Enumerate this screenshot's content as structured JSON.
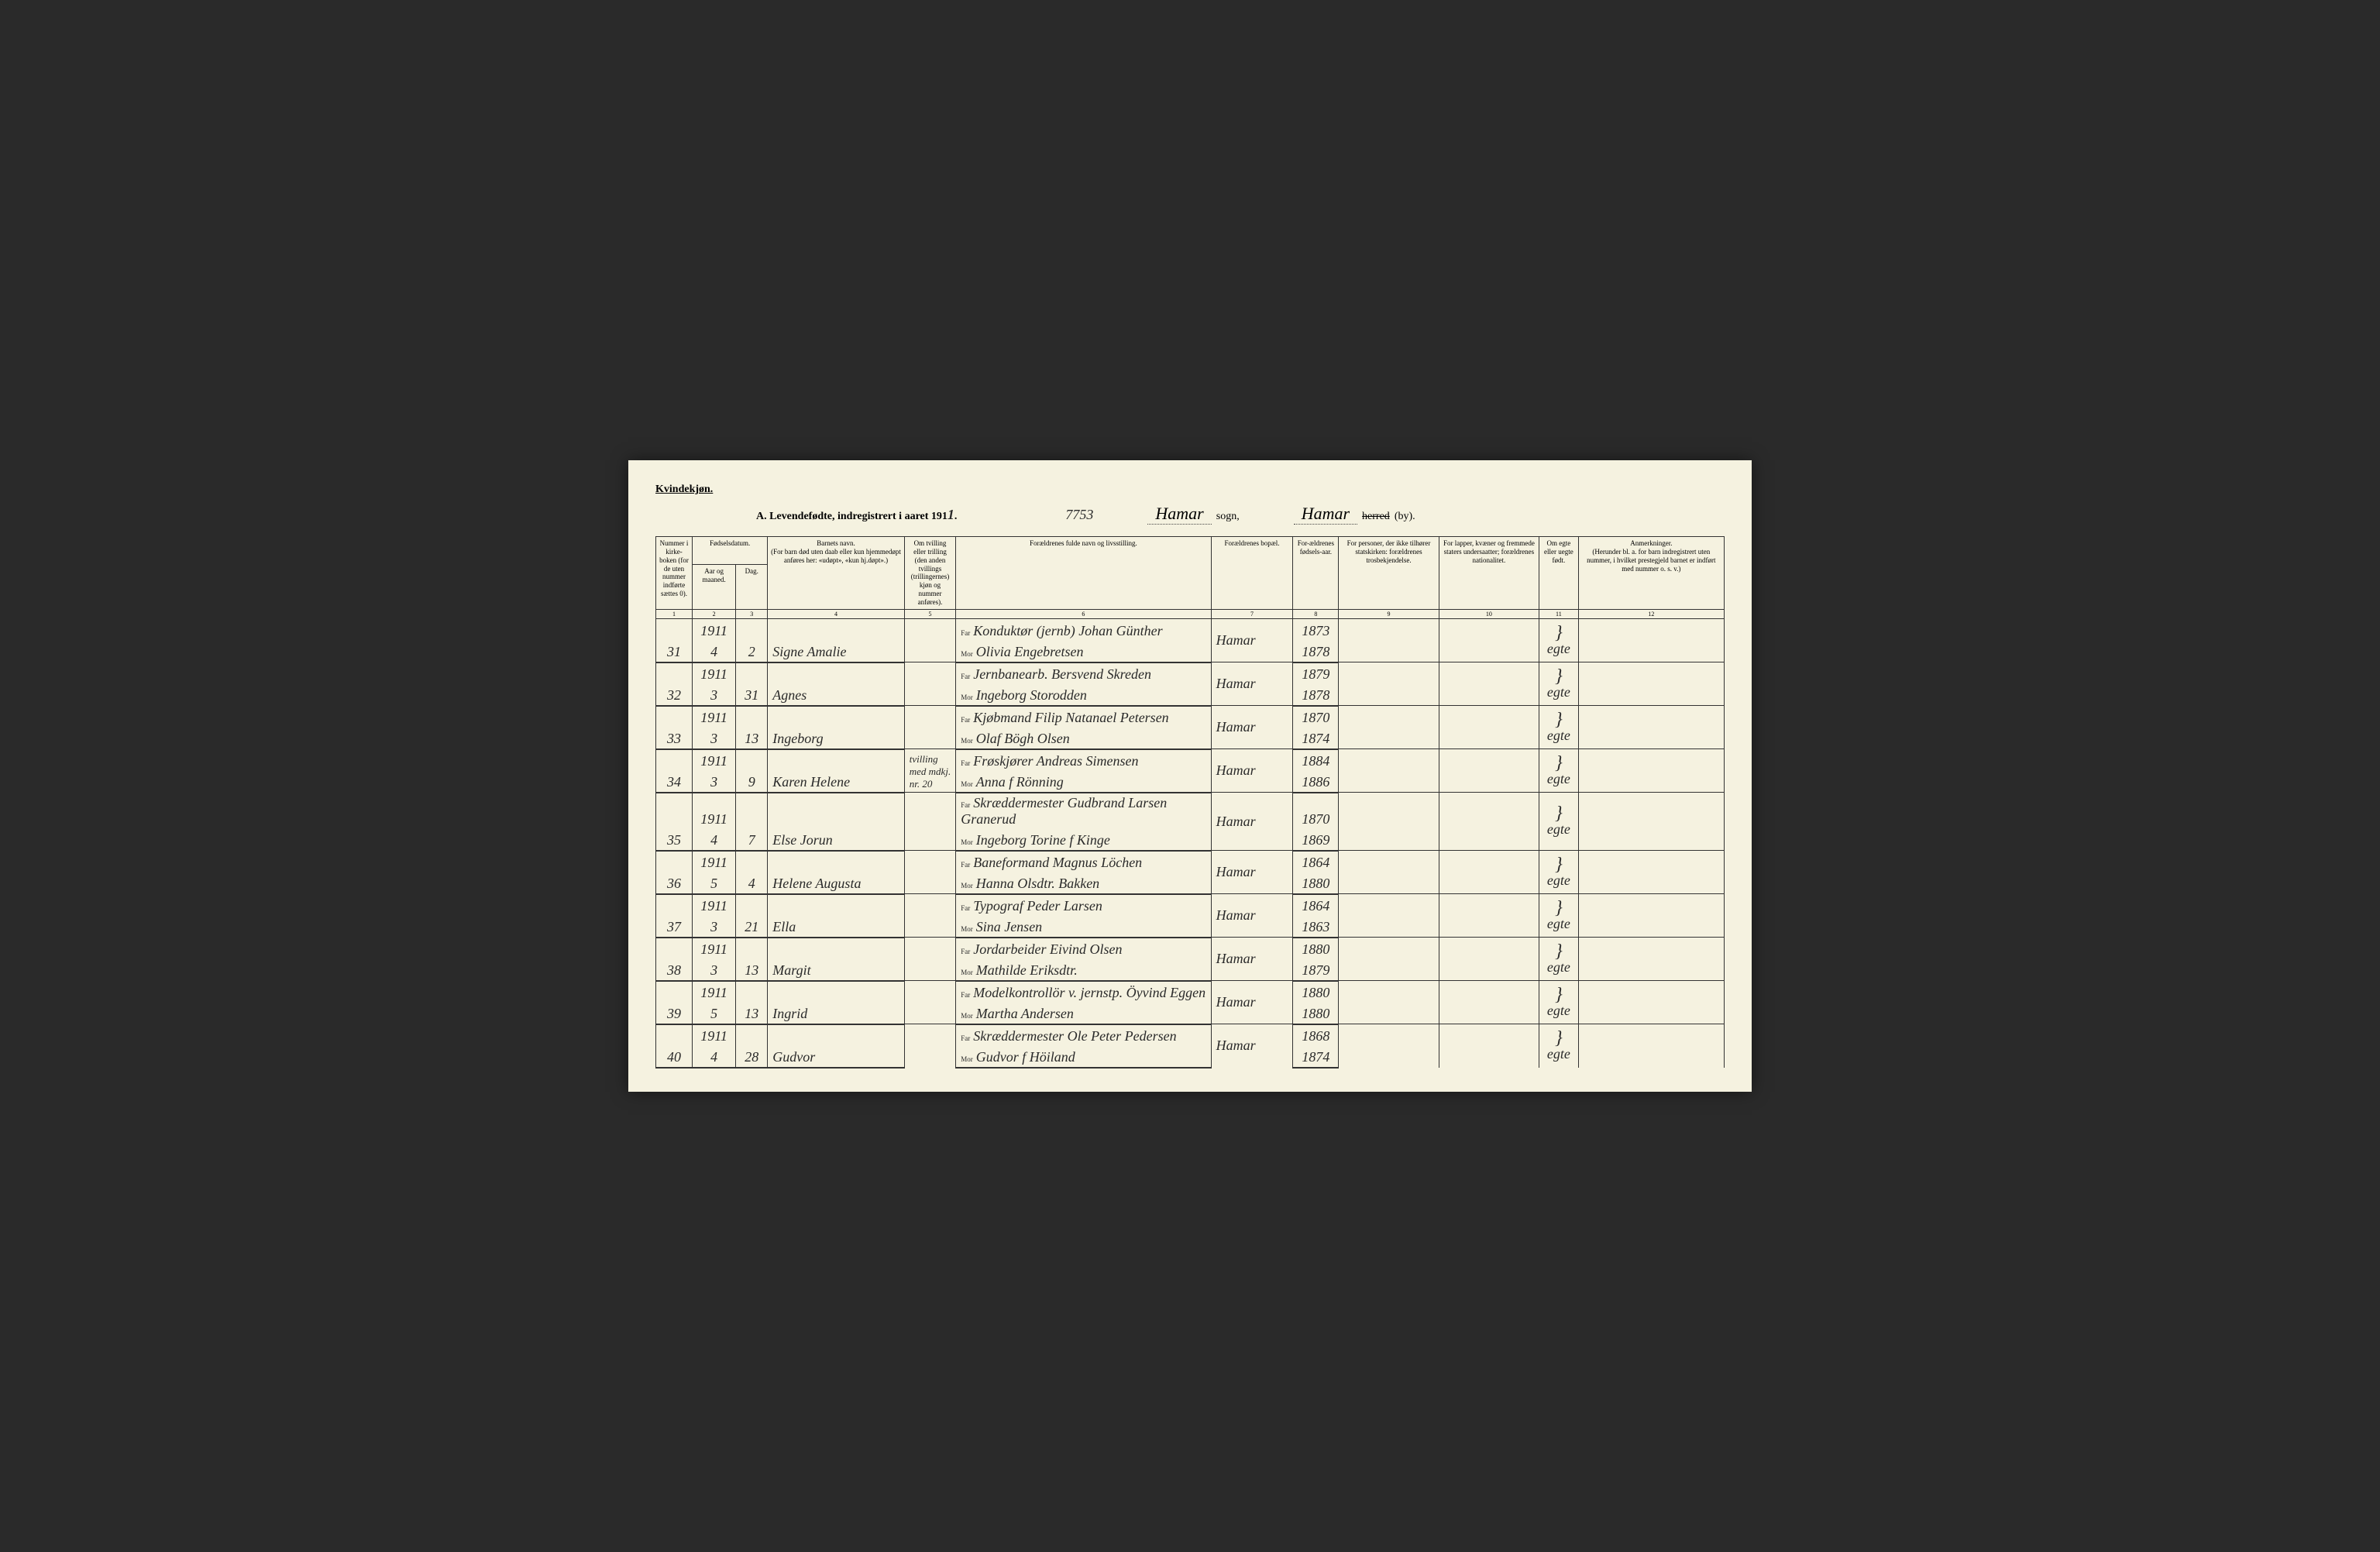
{
  "header": {
    "gender": "Kvindekjøn.",
    "title": "A.  Levendefødte, indregistrert i aaret 191",
    "year_suffix": "1",
    "handwritten_number": "7753",
    "sogn_value": "Hamar",
    "sogn_label": "sogn,",
    "herred_value": "Hamar",
    "herred_strike": "herred",
    "herred_label": "(by)."
  },
  "columns": {
    "c1": "Nummer i kirke-boken (for de uten nummer indførte sættes 0).",
    "c2_top": "Fødselsdatum.",
    "c2a": "Aar og maaned.",
    "c2b": "Dag.",
    "c4_top": "Barnets navn.",
    "c4_sub": "(For barn død uten daab eller kun hjemmedøpt anføres her: «udøpt», «kun hj.døpt».)",
    "c5": "Om tvilling eller trilling (den anden tvillings (trillingernes) kjøn og nummer anføres).",
    "c6": "Forældrenes fulde navn og livsstilling.",
    "c7": "Forældrenes bopæl.",
    "c8": "For-ældrenes fødsels-aar.",
    "c9": "For personer, der ikke tilhører statskirken: forældrenes trosbekjendelse.",
    "c10": "For lapper, kvæner og fremmede staters undersaatter; forældrenes nationalitet.",
    "c11": "Om egte eller uegte født.",
    "c12_top": "Anmerkninger.",
    "c12_sub": "(Herunder bl. a. for barn indregistrert uten nummer, i hvilket prestegjeld barnet er indført med nummer o. s. v.)"
  },
  "colnums": [
    "1",
    "2",
    "3",
    "4",
    "5",
    "6",
    "7",
    "8",
    "9",
    "10",
    "11",
    "12"
  ],
  "far_label": "Far",
  "mor_label": "Mor",
  "rows": [
    {
      "num": "31",
      "year": "1911",
      "month": "4",
      "day": "2",
      "name": "Signe Amalie",
      "twin": "",
      "far": "Konduktør (jernb) Johan Günther",
      "mor": "Olivia Engebretsen",
      "bopael": "Hamar",
      "far_aar": "1873",
      "mor_aar": "1878",
      "egte": "egte"
    },
    {
      "num": "32",
      "year": "1911",
      "month": "3",
      "day": "31",
      "name": "Agnes",
      "twin": "",
      "far": "Jernbanearb. Bersvend Skreden",
      "mor": "Ingeborg Storodden",
      "bopael": "Hamar",
      "far_aar": "1879",
      "mor_aar": "1878",
      "egte": "egte"
    },
    {
      "num": "33",
      "year": "1911",
      "month": "3",
      "day": "13",
      "name": "Ingeborg",
      "twin": "",
      "far": "Kjøbmand Filip Natanael Petersen",
      "mor": "Olaf Bögh Olsen",
      "bopael": "Hamar",
      "far_aar": "1870",
      "mor_aar": "1874",
      "egte": "egte"
    },
    {
      "num": "34",
      "year": "1911",
      "month": "3",
      "day": "9",
      "name": "Karen Helene",
      "twin": "tvilling med mdkj. nr. 20",
      "far": "Frøskjører Andreas Simensen",
      "mor": "Anna f Rönning",
      "bopael": "Hamar",
      "far_aar": "1884",
      "mor_aar": "1886",
      "egte": "egte"
    },
    {
      "num": "35",
      "year": "1911",
      "month": "4",
      "day": "7",
      "name": "Else Jorun",
      "twin": "",
      "far": "Skræddermester Gudbrand Larsen Granerud",
      "mor": "Ingeborg Torine f Kinge",
      "bopael": "Hamar",
      "far_aar": "1870",
      "mor_aar": "1869",
      "egte": "egte"
    },
    {
      "num": "36",
      "year": "1911",
      "month": "5",
      "day": "4",
      "name": "Helene Augusta",
      "twin": "",
      "far": "Baneformand Magnus Löchen",
      "mor": "Hanna Olsdtr. Bakken",
      "bopael": "Hamar",
      "far_aar": "1864",
      "mor_aar": "1880",
      "egte": "egte"
    },
    {
      "num": "37",
      "year": "1911",
      "month": "3",
      "day": "21",
      "name": "Ella",
      "twin": "",
      "far": "Typograf Peder Larsen",
      "mor": "Sina Jensen",
      "bopael": "Hamar",
      "far_aar": "1864",
      "mor_aar": "1863",
      "egte": "egte"
    },
    {
      "num": "38",
      "year": "1911",
      "month": "3",
      "day": "13",
      "name": "Margit",
      "twin": "",
      "far": "Jordarbeider Eivind Olsen",
      "mor": "Mathilde Eriksdtr.",
      "bopael": "Hamar",
      "far_aar": "1880",
      "mor_aar": "1879",
      "egte": "egte"
    },
    {
      "num": "39",
      "year": "1911",
      "month": "5",
      "day": "13",
      "name": "Ingrid",
      "twin": "",
      "far": "Modelkontrollör v. jernstp. Öyvind Eggen",
      "mor": "Martha Andersen",
      "bopael": "Hamar",
      "far_aar": "1880",
      "mor_aar": "1880",
      "egte": "egte"
    },
    {
      "num": "40",
      "year": "1911",
      "month": "4",
      "day": "28",
      "name": "Gudvor",
      "twin": "",
      "far": "Skræddermester Ole Peter Pedersen",
      "mor": "Gudvor f Höiland",
      "bopael": "Hamar",
      "far_aar": "1868",
      "mor_aar": "1874",
      "egte": "egte"
    }
  ],
  "styling": {
    "page_bg": "#f5f2e0",
    "border_color": "#333333",
    "handwriting_color": "#2a2a2a",
    "header_fontsize": 14,
    "body_fontsize": 11,
    "handwriting_fontsize": 18
  }
}
